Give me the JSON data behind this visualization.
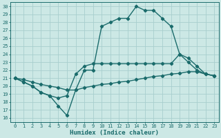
{
  "xlabel": "Humidex (Indice chaleur)",
  "bg_color": "#cce8e5",
  "grid_color": "#a8cece",
  "line_color": "#1a6b6b",
  "xlim": [
    -0.5,
    23.5
  ],
  "ylim": [
    15.5,
    30.5
  ],
  "xticks": [
    0,
    1,
    2,
    3,
    4,
    5,
    6,
    7,
    8,
    9,
    10,
    11,
    12,
    13,
    14,
    15,
    16,
    17,
    18,
    19,
    20,
    21,
    22,
    23
  ],
  "yticks": [
    16,
    17,
    18,
    19,
    20,
    21,
    22,
    23,
    24,
    25,
    26,
    27,
    28,
    29,
    30
  ],
  "line1_x": [
    0,
    1,
    2,
    3,
    4,
    5,
    6,
    7,
    8,
    9,
    10,
    11,
    12,
    13,
    14,
    15,
    16,
    17,
    18,
    19,
    20,
    21,
    22,
    23
  ],
  "line1_y": [
    21.0,
    20.8,
    20.5,
    20.2,
    20.0,
    19.8,
    19.5,
    19.5,
    19.8,
    20.0,
    20.2,
    20.3,
    20.5,
    20.6,
    20.8,
    21.0,
    21.2,
    21.3,
    21.5,
    21.6,
    21.8,
    21.8,
    21.5,
    21.3
  ],
  "line2_x": [
    0,
    1,
    2,
    3,
    4,
    5,
    6,
    7,
    8,
    9,
    10,
    11,
    12,
    13,
    14,
    15,
    16,
    17,
    18,
    19,
    20,
    21,
    22,
    23
  ],
  "line2_y": [
    21.0,
    20.5,
    20.0,
    19.2,
    18.8,
    18.5,
    18.8,
    21.5,
    22.5,
    22.8,
    22.8,
    22.8,
    22.8,
    22.8,
    22.8,
    22.8,
    22.8,
    22.8,
    22.8,
    24.0,
    23.5,
    22.5,
    21.5,
    21.3
  ],
  "line3_x": [
    0,
    1,
    2,
    3,
    4,
    5,
    6,
    7,
    8,
    9,
    10,
    11,
    12,
    13,
    14,
    15,
    16,
    17,
    18,
    19,
    20,
    21,
    22,
    23
  ],
  "line3_y": [
    21.0,
    20.5,
    20.0,
    19.2,
    18.8,
    17.5,
    16.3,
    19.5,
    22.0,
    22.0,
    27.5,
    28.0,
    28.5,
    28.5,
    30.0,
    29.5,
    29.5,
    28.5,
    27.5,
    24.0,
    23.0,
    22.0,
    21.5,
    21.3
  ],
  "marker_size": 2.2,
  "linewidth": 1.0
}
